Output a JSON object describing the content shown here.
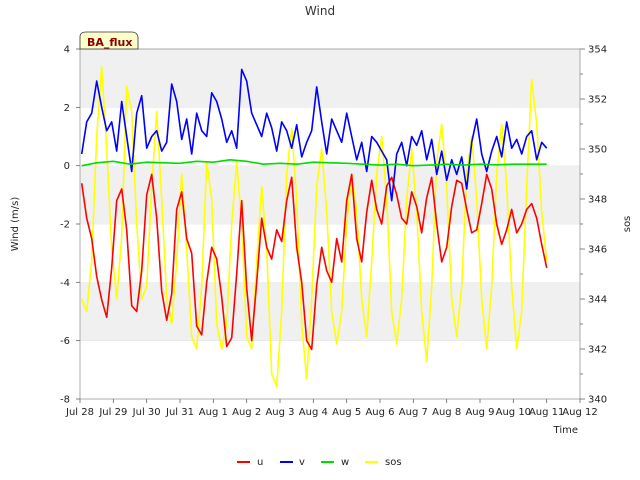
{
  "chart_data": {
    "type": "line",
    "title": "Wind",
    "badge": "BA_flux",
    "xlabel": "Time",
    "ylabel": "Wind (m/s)",
    "y2label": "sos",
    "x_categories": [
      "Jul 28",
      "Jul 29",
      "Jul 30",
      "Jul 31",
      "Aug 1",
      "Aug 2",
      "Aug 3",
      "Aug 4",
      "Aug 5",
      "Aug 6",
      "Aug 7",
      "Aug 8",
      "Aug 9",
      "Aug 10",
      "Aug 11",
      "Aug 12"
    ],
    "xlim": [
      0,
      15
    ],
    "ylim": [
      -8,
      4
    ],
    "yticks": [
      -8,
      -6,
      -4,
      -2,
      0,
      2,
      4
    ],
    "y2lim": [
      340,
      354
    ],
    "y2ticks": [
      340,
      342,
      344,
      346,
      348,
      350,
      352,
      354
    ],
    "grid_bands": true,
    "legend_position": "bottom-center",
    "series": [
      {
        "name": "u",
        "color": "#ff0000",
        "axis": "left",
        "x": [
          0.05,
          0.2,
          0.35,
          0.5,
          0.65,
          0.8,
          0.95,
          1.1,
          1.25,
          1.4,
          1.55,
          1.7,
          1.85,
          2.0,
          2.15,
          2.3,
          2.45,
          2.6,
          2.75,
          2.9,
          3.05,
          3.2,
          3.35,
          3.5,
          3.65,
          3.8,
          3.95,
          4.1,
          4.25,
          4.4,
          4.55,
          4.7,
          4.85,
          5.0,
          5.15,
          5.3,
          5.45,
          5.6,
          5.75,
          5.9,
          6.05,
          6.2,
          6.35,
          6.5,
          6.65,
          6.8,
          6.95,
          7.1,
          7.25,
          7.4,
          7.55,
          7.7,
          7.85,
          8.0,
          8.15,
          8.3,
          8.45,
          8.6,
          8.75,
          8.9,
          9.05,
          9.2,
          9.35,
          9.5,
          9.65,
          9.8,
          9.95,
          10.1,
          10.25,
          10.4,
          10.55,
          10.7,
          10.85,
          11.0,
          11.15,
          11.3,
          11.45,
          11.6,
          11.75,
          11.9,
          12.05,
          12.2,
          12.35,
          12.5,
          12.65,
          12.8,
          12.95,
          13.1,
          13.25,
          13.4,
          13.55,
          13.7,
          13.85,
          14.0
        ],
        "values": [
          -0.6,
          -1.8,
          -2.5,
          -3.8,
          -4.6,
          -5.2,
          -3.5,
          -1.2,
          -0.8,
          -2.2,
          -4.8,
          -5.0,
          -3.6,
          -1.0,
          -0.3,
          -1.8,
          -4.3,
          -5.3,
          -4.4,
          -1.5,
          -0.9,
          -2.5,
          -3.0,
          -5.5,
          -5.8,
          -4.0,
          -2.8,
          -3.2,
          -4.5,
          -6.2,
          -5.9,
          -3.7,
          -1.2,
          -4.2,
          -6.0,
          -4.0,
          -1.8,
          -2.8,
          -3.2,
          -2.2,
          -2.6,
          -1.2,
          -0.4,
          -2.8,
          -4.0,
          -6.0,
          -6.3,
          -4.1,
          -2.8,
          -3.6,
          -4.0,
          -2.5,
          -3.3,
          -1.2,
          -0.3,
          -2.5,
          -3.3,
          -1.6,
          -0.5,
          -1.5,
          -2.0,
          -0.7,
          -0.4,
          -1.0,
          -1.8,
          -2.0,
          -0.9,
          -1.4,
          -2.3,
          -1.1,
          -0.4,
          -2.0,
          -3.3,
          -2.8,
          -1.4,
          -0.5,
          -0.6,
          -1.5,
          -2.3,
          -2.2,
          -1.3,
          -0.3,
          -0.8,
          -2.0,
          -2.7,
          -2.2,
          -1.5,
          -2.3,
          -2.0,
          -1.5,
          -1.3,
          -1.8,
          -2.7,
          -3.5
        ]
      },
      {
        "name": "v",
        "color": "#0000ff",
        "axis": "left",
        "x": [
          0.05,
          0.2,
          0.35,
          0.5,
          0.65,
          0.8,
          0.95,
          1.1,
          1.25,
          1.4,
          1.55,
          1.7,
          1.85,
          2.0,
          2.15,
          2.3,
          2.45,
          2.6,
          2.75,
          2.9,
          3.05,
          3.2,
          3.35,
          3.5,
          3.65,
          3.8,
          3.95,
          4.1,
          4.25,
          4.4,
          4.55,
          4.7,
          4.85,
          5.0,
          5.15,
          5.3,
          5.45,
          5.6,
          5.75,
          5.9,
          6.05,
          6.2,
          6.35,
          6.5,
          6.65,
          6.8,
          6.95,
          7.1,
          7.25,
          7.4,
          7.55,
          7.7,
          7.85,
          8.0,
          8.15,
          8.3,
          8.45,
          8.6,
          8.75,
          8.9,
          9.05,
          9.2,
          9.35,
          9.5,
          9.65,
          9.8,
          9.95,
          10.1,
          10.25,
          10.4,
          10.55,
          10.7,
          10.85,
          11.0,
          11.15,
          11.3,
          11.45,
          11.6,
          11.75,
          11.9,
          12.05,
          12.2,
          12.35,
          12.5,
          12.65,
          12.8,
          12.95,
          13.1,
          13.25,
          13.4,
          13.55,
          13.7,
          13.85,
          14.0
        ],
        "values": [
          0.4,
          1.5,
          1.8,
          2.9,
          2.0,
          1.2,
          1.5,
          0.5,
          2.2,
          1.0,
          -0.2,
          1.8,
          2.4,
          0.6,
          1.0,
          1.2,
          0.5,
          0.8,
          2.8,
          2.2,
          0.9,
          1.6,
          0.4,
          1.8,
          1.2,
          1.0,
          2.5,
          2.2,
          1.6,
          0.8,
          1.2,
          0.6,
          3.3,
          2.9,
          1.8,
          1.4,
          1.0,
          1.8,
          1.3,
          0.5,
          1.5,
          1.2,
          0.6,
          1.4,
          0.3,
          0.8,
          1.2,
          2.7,
          1.5,
          0.4,
          1.6,
          1.2,
          0.8,
          1.8,
          1.0,
          0.2,
          0.8,
          -0.2,
          1.0,
          0.8,
          0.5,
          0.2,
          -1.2,
          0.4,
          0.8,
          0.0,
          1.0,
          0.7,
          1.2,
          0.2,
          0.9,
          -0.3,
          0.5,
          -0.5,
          0.2,
          -0.3,
          0.3,
          -0.8,
          0.8,
          1.6,
          0.4,
          -0.2,
          0.5,
          1.0,
          0.3,
          1.5,
          0.6,
          0.9,
          0.4,
          1.0,
          1.2,
          0.2,
          0.8,
          0.6
        ]
      },
      {
        "name": "w",
        "color": "#00dd00",
        "axis": "left",
        "x": [
          0.05,
          0.5,
          1.0,
          1.5,
          2.0,
          2.5,
          3.0,
          3.5,
          4.0,
          4.5,
          5.0,
          5.5,
          6.0,
          6.5,
          7.0,
          7.5,
          8.0,
          8.5,
          9.0,
          9.5,
          10.0,
          10.5,
          11.0,
          11.5,
          12.0,
          12.5,
          13.0,
          13.5,
          14.0
        ],
        "values": [
          0.0,
          0.1,
          0.15,
          0.05,
          0.12,
          0.1,
          0.08,
          0.15,
          0.12,
          0.2,
          0.15,
          0.05,
          0.08,
          0.05,
          0.12,
          0.1,
          0.08,
          0.05,
          0.02,
          0.05,
          0.0,
          0.02,
          0.05,
          0.02,
          0.05,
          0.03,
          0.05,
          0.05,
          0.05
        ]
      },
      {
        "name": "sos",
        "color": "#ffff00",
        "axis": "right",
        "x": [
          0.05,
          0.2,
          0.35,
          0.5,
          0.65,
          0.8,
          0.95,
          1.1,
          1.25,
          1.4,
          1.55,
          1.7,
          1.85,
          2.0,
          2.15,
          2.3,
          2.45,
          2.6,
          2.75,
          2.9,
          3.05,
          3.2,
          3.35,
          3.5,
          3.65,
          3.8,
          3.95,
          4.1,
          4.25,
          4.4,
          4.55,
          4.7,
          4.85,
          5.0,
          5.15,
          5.3,
          5.45,
          5.6,
          5.75,
          5.9,
          6.05,
          6.2,
          6.35,
          6.5,
          6.65,
          6.8,
          6.95,
          7.1,
          7.25,
          7.4,
          7.55,
          7.7,
          7.85,
          8.0,
          8.15,
          8.3,
          8.45,
          8.6,
          8.75,
          8.9,
          9.05,
          9.2,
          9.35,
          9.5,
          9.65,
          9.8,
          9.95,
          10.1,
          10.25,
          10.4,
          10.55,
          10.7,
          10.85,
          11.0,
          11.15,
          11.3,
          11.45,
          11.6,
          11.75,
          11.9,
          12.05,
          12.2,
          12.35,
          12.5,
          12.65,
          12.8,
          12.95,
          13.1,
          13.25,
          13.4,
          13.55,
          13.7,
          13.85,
          14.0
        ],
        "values": [
          344.0,
          343.5,
          345.5,
          350.5,
          353.3,
          350.0,
          346.0,
          344.0,
          346.5,
          352.5,
          351.5,
          347.0,
          344.0,
          344.5,
          348.5,
          351.5,
          348.0,
          344.0,
          343.0,
          345.5,
          349.0,
          346.0,
          342.5,
          342.0,
          344.5,
          349.5,
          348.0,
          343.0,
          342.0,
          343.0,
          347.0,
          349.5,
          347.0,
          342.5,
          342.0,
          345.5,
          348.5,
          346.0,
          341.0,
          340.5,
          343.5,
          349.0,
          350.8,
          348.0,
          343.0,
          340.8,
          344.0,
          348.5,
          350.0,
          347.5,
          343.5,
          342.2,
          343.5,
          347.0,
          349.0,
          347.5,
          344.0,
          342.5,
          345.5,
          349.0,
          350.5,
          348.0,
          343.5,
          342.2,
          344.0,
          348.0,
          350.0,
          347.5,
          343.5,
          341.5,
          344.5,
          349.5,
          351.0,
          348.5,
          344.0,
          342.5,
          344.5,
          349.0,
          350.5,
          348.0,
          344.0,
          342.0,
          344.5,
          349.0,
          351.0,
          348.5,
          344.5,
          342.0,
          343.5,
          348.5,
          352.8,
          351.0,
          347.5,
          345.5
        ]
      }
    ]
  }
}
